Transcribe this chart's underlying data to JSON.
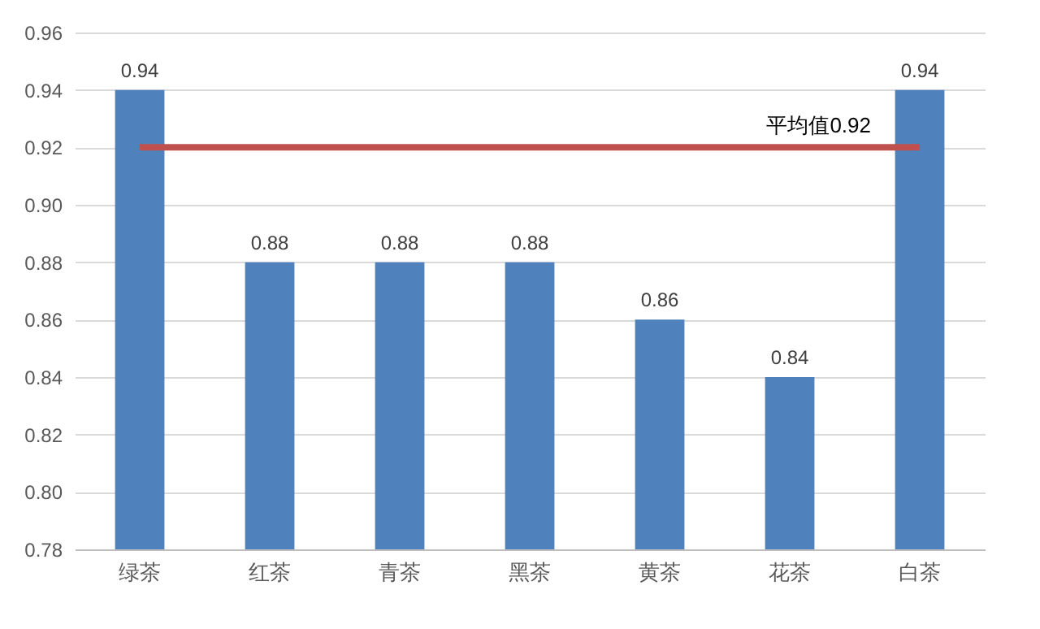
{
  "chart_data": {
    "type": "bar",
    "categories": [
      "绿茶",
      "红茶",
      "青茶",
      "黑茶",
      "黄茶",
      "花茶",
      "白茶"
    ],
    "values": [
      0.94,
      0.88,
      0.88,
      0.88,
      0.86,
      0.84,
      0.94
    ],
    "color": "#4f81bd",
    "ylim": [
      0.78,
      0.96
    ],
    "yticks": [
      0.78,
      {
        "value": 0.8,
        "label": "0.80"
      },
      0.82,
      0.84,
      0.86,
      0.88,
      {
        "value": 0.9,
        "label": "0.90"
      },
      0.92,
      0.94,
      0.96
    ],
    "grid": "y",
    "data_labels": true,
    "ref_lines": [
      {
        "axis": "y",
        "value": 0.92,
        "label": "平均值0.92",
        "color": "#c0504d"
      }
    ]
  }
}
